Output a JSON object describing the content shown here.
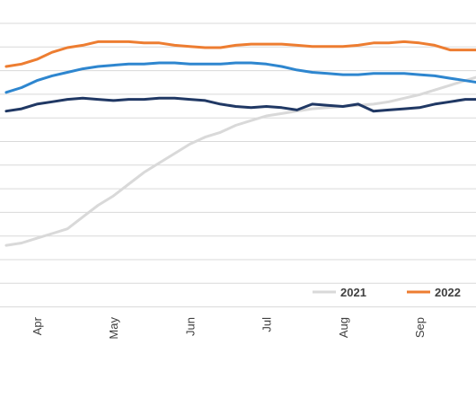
{
  "chart_data": {
    "type": "line",
    "title": "",
    "xlabel": "",
    "ylabel": "",
    "grid": true,
    "legend_position": "bottom-right",
    "x_months": [
      "Apr",
      "May",
      "Jun",
      "Jul",
      "Aug",
      "Sep"
    ],
    "x": [
      3.6,
      3.8,
      4.0,
      4.2,
      4.4,
      4.6,
      4.8,
      5.0,
      5.2,
      5.4,
      5.6,
      5.8,
      6.0,
      6.2,
      6.4,
      6.6,
      6.8,
      7.0,
      7.2,
      7.4,
      7.6,
      7.8,
      8.0,
      8.2,
      8.4,
      8.6,
      8.8,
      9.0,
      9.2,
      9.4,
      9.6,
      9.8
    ],
    "ylim": [
      0,
      100
    ],
    "series": [
      {
        "name": "2021",
        "color": "#d9d9d9",
        "values": [
          16,
          17,
          19,
          21,
          23,
          28,
          33,
          37,
          42,
          47,
          51,
          55,
          59,
          62,
          64,
          67,
          69,
          71,
          72,
          73,
          74,
          74.5,
          75,
          75.5,
          76,
          77,
          78.5,
          80,
          82,
          84,
          86,
          88
        ]
      },
      {
        "name": "2022",
        "color": "#ed7d31",
        "values": [
          92,
          93,
          95,
          98,
          100,
          101,
          102.5,
          102.5,
          102.5,
          102,
          102,
          101,
          100.5,
          100,
          100,
          101,
          101.5,
          101.5,
          101.5,
          101,
          100.5,
          100.5,
          100.5,
          101,
          102,
          102,
          102.5,
          102,
          101,
          99,
          99,
          99
        ]
      },
      {
        "name": "",
        "color": "#2e86cf",
        "values": [
          81,
          83,
          86,
          88,
          89.5,
          91,
          92,
          92.5,
          93,
          93,
          93.5,
          93.5,
          93,
          93,
          93,
          93.5,
          93.5,
          93,
          92,
          90.5,
          89.5,
          89,
          88.5,
          88.5,
          89,
          89,
          89,
          88.5,
          88,
          87,
          86,
          85
        ]
      },
      {
        "name": "",
        "color": "#203864",
        "values": [
          73,
          74,
          76,
          77,
          78,
          78.5,
          78,
          77.5,
          78,
          78,
          78.5,
          78.5,
          78,
          77.5,
          76,
          75,
          74.5,
          75,
          74.5,
          73.5,
          76,
          75.5,
          75,
          76,
          73,
          73.5,
          74,
          74.5,
          76,
          77,
          78,
          78
        ]
      }
    ]
  }
}
